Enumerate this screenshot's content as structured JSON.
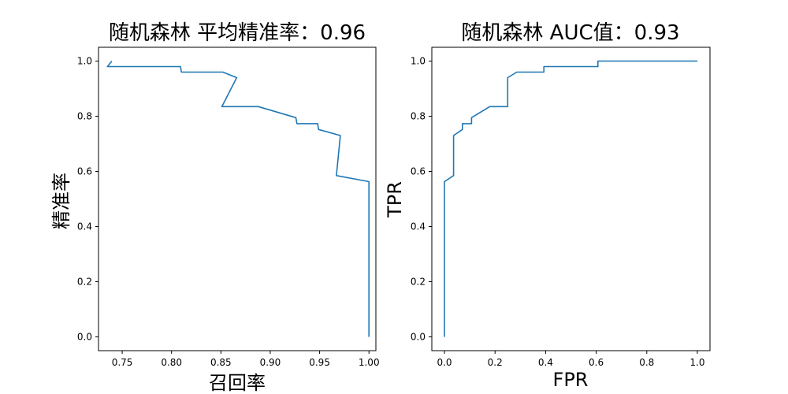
{
  "chart_data": [
    {
      "type": "line",
      "title": "随机森林 平均精准率：0.96",
      "xlabel": "召回率",
      "ylabel": "精准率",
      "xlim": [
        0.726,
        1.007
      ],
      "ylim": [
        -0.05,
        1.05
      ],
      "xticks": [
        0.75,
        0.8,
        0.85,
        0.9,
        0.95,
        1.0
      ],
      "xtick_labels": [
        "0.75",
        "0.80",
        "0.85",
        "0.90",
        "0.95",
        "1.00"
      ],
      "yticks": [
        0.0,
        0.2,
        0.4,
        0.6,
        0.8,
        1.0
      ],
      "ytick_labels": [
        "0.0",
        "0.2",
        "0.4",
        "0.6",
        "0.8",
        "1.0"
      ],
      "grid": false,
      "series": [
        {
          "color": "#1f77b4",
          "x": [
            0.7395,
            0.735,
            0.809,
            0.81,
            0.852,
            0.866,
            0.851,
            0.888,
            0.926,
            0.927,
            0.948,
            0.949,
            0.971,
            0.967,
            1.0,
            1.0
          ],
          "y": [
            1.0,
            0.98,
            0.98,
            0.96,
            0.96,
            0.94,
            0.835,
            0.835,
            0.795,
            0.773,
            0.773,
            0.752,
            0.73,
            0.585,
            0.563,
            0.0
          ]
        }
      ]
    },
    {
      "type": "line",
      "title": "随机森林 AUC值：0.93",
      "xlabel": "FPR",
      "ylabel": "TPR",
      "xlim": [
        -0.05,
        1.05
      ],
      "ylim": [
        -0.05,
        1.05
      ],
      "xticks": [
        0.0,
        0.2,
        0.4,
        0.6,
        0.8,
        1.0
      ],
      "xtick_labels": [
        "0.0",
        "0.2",
        "0.4",
        "0.6",
        "0.8",
        "1.0"
      ],
      "yticks": [
        0.0,
        0.2,
        0.4,
        0.6,
        0.8,
        1.0
      ],
      "ytick_labels": [
        "0.0",
        "0.2",
        "0.4",
        "0.6",
        "0.8",
        "1.0"
      ],
      "grid": false,
      "series": [
        {
          "color": "#1f77b4",
          "x": [
            0.0,
            0.0,
            0.036,
            0.036,
            0.071,
            0.071,
            0.107,
            0.107,
            0.179,
            0.25,
            0.25,
            0.286,
            0.393,
            0.393,
            0.607,
            0.607,
            1.0
          ],
          "y": [
            0.0,
            0.563,
            0.585,
            0.73,
            0.752,
            0.773,
            0.773,
            0.795,
            0.835,
            0.835,
            0.94,
            0.96,
            0.96,
            0.98,
            0.98,
            1.0,
            1.0
          ]
        }
      ]
    }
  ]
}
